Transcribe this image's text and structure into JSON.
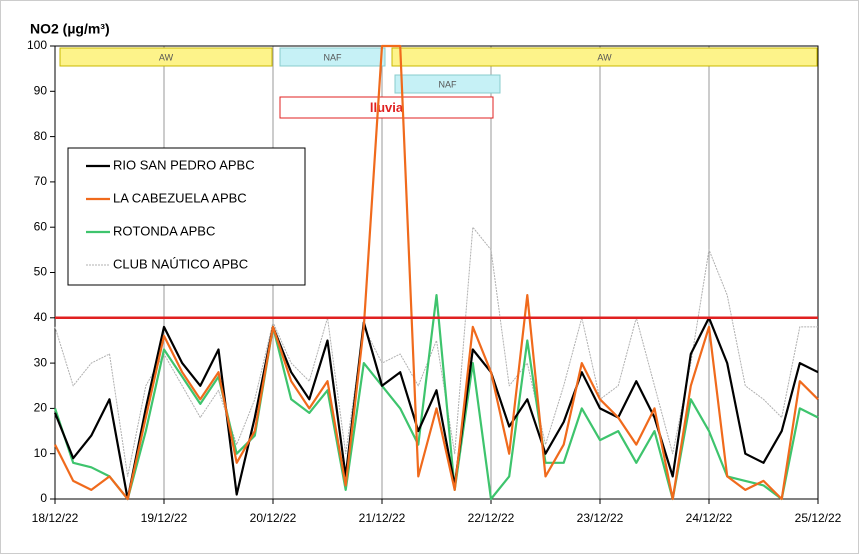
{
  "chart_data": {
    "type": "line",
    "title": "NO2 (µg/m³)",
    "categories": [
      "18/12/22",
      null,
      null,
      null,
      null,
      null,
      "19/12/22",
      null,
      null,
      null,
      null,
      null,
      "20/12/22",
      null,
      null,
      null,
      null,
      null,
      "21/12/22",
      null,
      null,
      null,
      null,
      null,
      "22/12/22",
      null,
      null,
      null,
      null,
      null,
      "23/12/22",
      null,
      null,
      null,
      null,
      null,
      "24/12/22",
      null,
      null,
      null,
      null,
      null,
      "25/12/22"
    ],
    "series": [
      {
        "name": "RIO SAN PEDRO APBC",
        "color": "#000000",
        "values": [
          19,
          9,
          14,
          22,
          0,
          20,
          38,
          30,
          25,
          33,
          1,
          18,
          38,
          28,
          22,
          35,
          5,
          39,
          25,
          28,
          15,
          24,
          3,
          33,
          28,
          16,
          22,
          10,
          17,
          28,
          20,
          18,
          26,
          18,
          5,
          32,
          40,
          30,
          10,
          8,
          15,
          30,
          28
        ]
      },
      {
        "name": "LA CABEZUELA  APBC",
        "color": "#f06a1c",
        "values": [
          12,
          4,
          2,
          5,
          0,
          18,
          36,
          28,
          22,
          28,
          8,
          15,
          38,
          26,
          20,
          26,
          3,
          38,
          100,
          100,
          5,
          20,
          2,
          38,
          28,
          10,
          45,
          5,
          12,
          30,
          22,
          18,
          12,
          20,
          0,
          25,
          38,
          5,
          2,
          4,
          0,
          26,
          22
        ]
      },
      {
        "name": "ROTONDA  APBC",
        "color": "#3ec46d",
        "values": [
          20,
          8,
          7,
          5,
          0,
          15,
          33,
          27,
          21,
          27,
          10,
          14,
          38,
          22,
          19,
          24,
          2,
          30,
          25,
          20,
          12,
          45,
          2,
          30,
          0,
          5,
          35,
          8,
          8,
          20,
          13,
          15,
          8,
          15,
          0,
          22,
          15,
          5,
          4,
          3,
          0,
          20,
          18
        ]
      },
      {
        "name": "CLUB NAÚTICO  APBC",
        "color": "#b0b0b0",
        "values": [
          38,
          25,
          30,
          32,
          5,
          25,
          32,
          25,
          18,
          24,
          12,
          22,
          39,
          30,
          26,
          40,
          10,
          38,
          30,
          32,
          25,
          35,
          10,
          60,
          55,
          25,
          30,
          12,
          25,
          40,
          22,
          25,
          40,
          25,
          10,
          30,
          55,
          45,
          25,
          22,
          18,
          38,
          38
        ]
      }
    ],
    "ylim": [
      0,
      100
    ],
    "yticks": [
      0,
      10,
      20,
      30,
      40,
      50,
      60,
      70,
      80,
      90,
      100
    ],
    "reference_line": {
      "value": 40,
      "color": "#e02020"
    },
    "annotations": [
      "AW",
      "NAF",
      "AW",
      "NAF",
      "lluvia"
    ],
    "grid": true,
    "legend": "upper left"
  }
}
